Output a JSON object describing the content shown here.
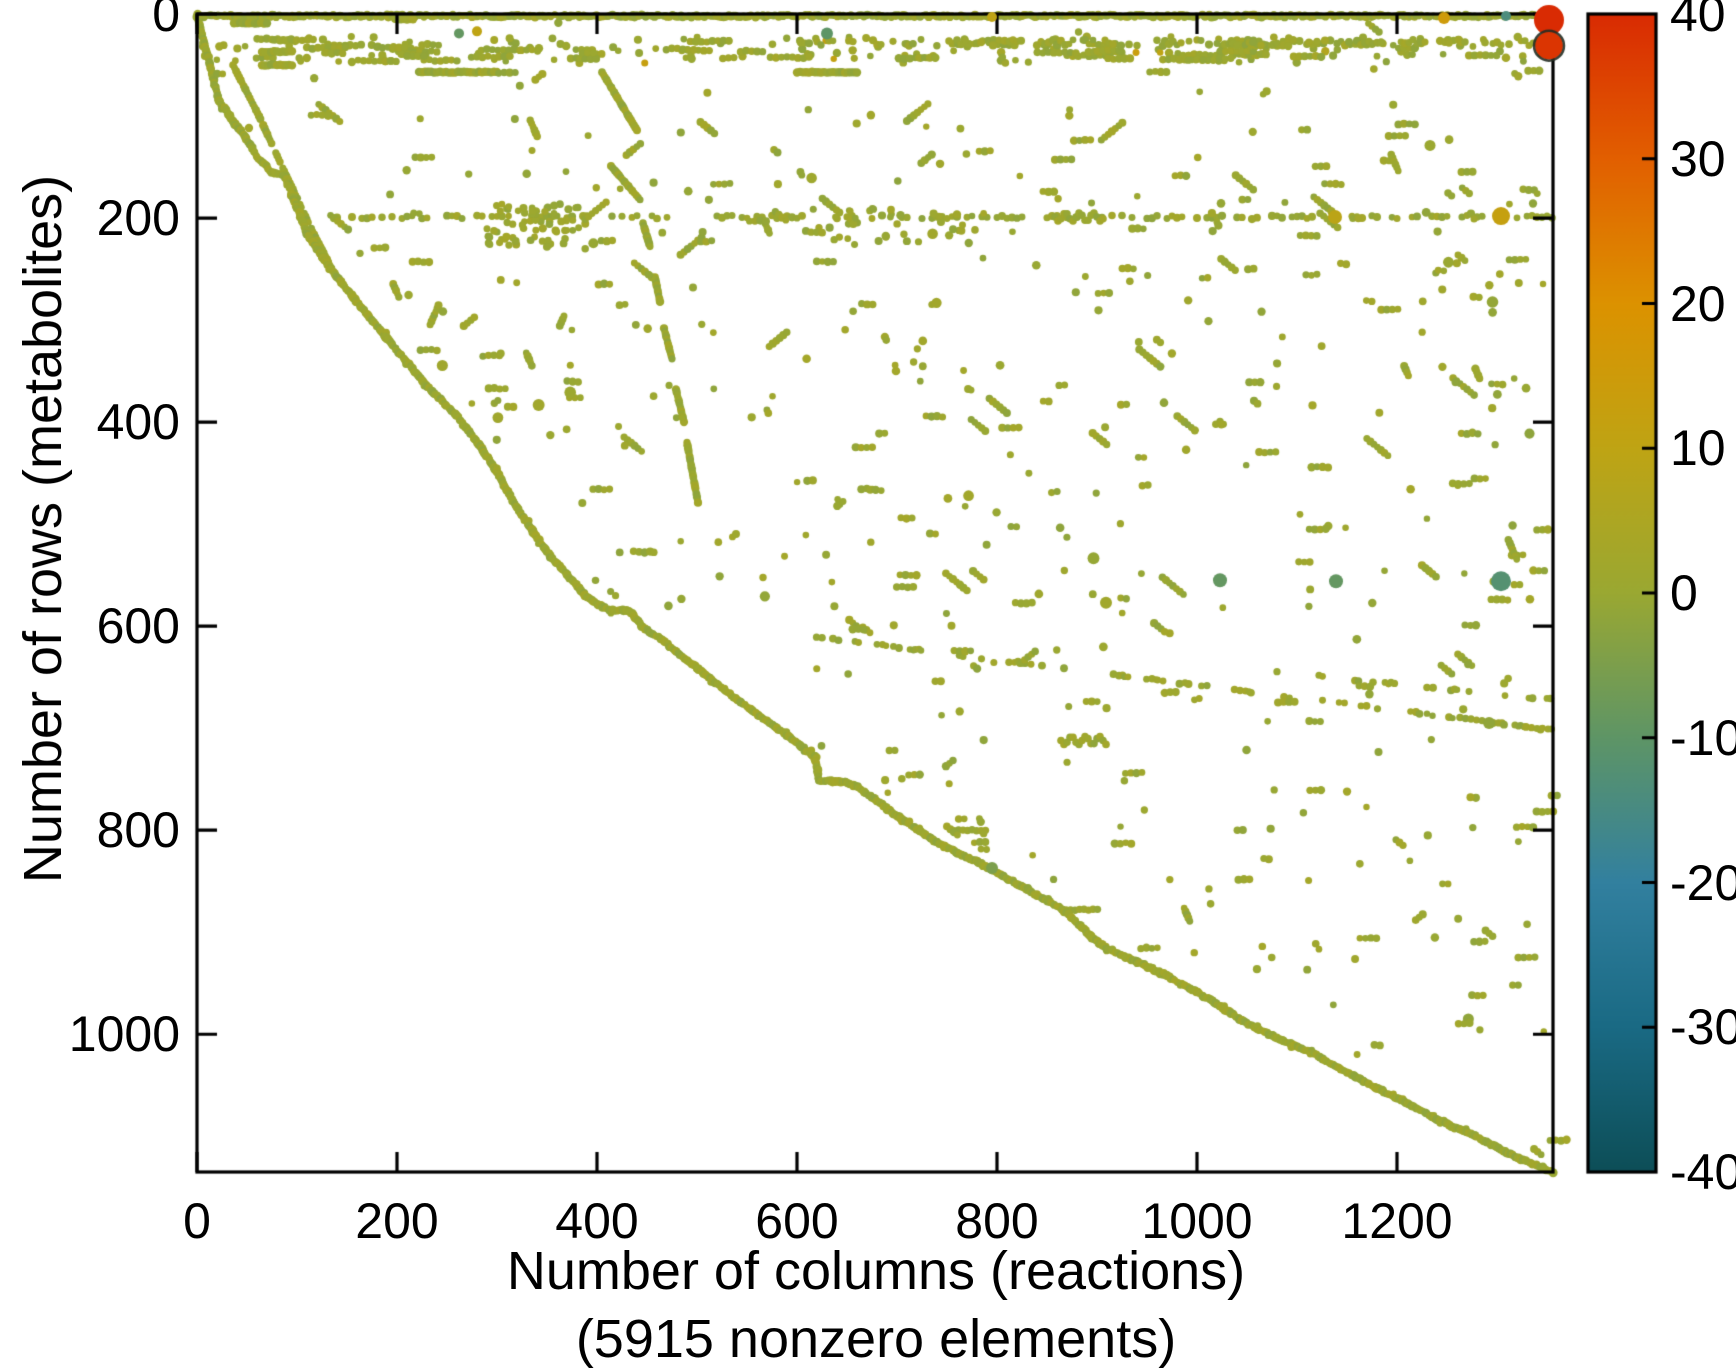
{
  "chart_data": {
    "type": "scatter",
    "subtype": "matrix-sparsity-spy",
    "xlabel": "Number of columns (reactions)",
    "xlabel_line2": "(5915 nonzero elements)",
    "ylabel": "Number of rows (metabolites)",
    "nonzero_elements": 5915,
    "x_ticks": [
      0,
      200,
      400,
      600,
      800,
      1000,
      1200
    ],
    "y_ticks": [
      0,
      200,
      400,
      600,
      800,
      1000
    ],
    "xlim": [
      0,
      1356
    ],
    "ylim": [
      0,
      1135
    ],
    "y_axis_reversed": true,
    "grid": false,
    "marker_color_default": "#97a530",
    "marker_radius_px": 3.8,
    "colorbar": {
      "min": -40,
      "max": 40,
      "ticks": [
        40,
        30,
        20,
        10,
        0,
        -10,
        -20,
        -30,
        -40
      ],
      "stops": [
        {
          "v": 40,
          "c": "#d92b03"
        },
        {
          "v": 30,
          "c": "#e25f00"
        },
        {
          "v": 20,
          "c": "#dc9200"
        },
        {
          "v": 10,
          "c": "#bfa414"
        },
        {
          "v": 0,
          "c": "#9aa832"
        },
        {
          "v": -10,
          "c": "#5e9566"
        },
        {
          "v": -20,
          "c": "#32809f"
        },
        {
          "v": -30,
          "c": "#1a6a84"
        },
        {
          "v": -40,
          "c": "#0d4e57"
        }
      ]
    },
    "frontier_points": [
      [
        0,
        0
      ],
      [
        10,
        40
      ],
      [
        22,
        85
      ],
      [
        38,
        108
      ],
      [
        49,
        121
      ],
      [
        60,
        140
      ],
      [
        75,
        155
      ],
      [
        88,
        158
      ],
      [
        95,
        178
      ],
      [
        110,
        215
      ],
      [
        125,
        238
      ],
      [
        140,
        258
      ],
      [
        155,
        276
      ],
      [
        170,
        294
      ],
      [
        190,
        318
      ],
      [
        215,
        347
      ],
      [
        235,
        370
      ],
      [
        258,
        392
      ],
      [
        282,
        422
      ],
      [
        302,
        452
      ],
      [
        316,
        478
      ],
      [
        335,
        506
      ],
      [
        350,
        527
      ],
      [
        370,
        549
      ],
      [
        388,
        570
      ],
      [
        400,
        578
      ],
      [
        413,
        585
      ],
      [
        432,
        585
      ],
      [
        448,
        603
      ],
      [
        463,
        612
      ],
      [
        500,
        641
      ],
      [
        540,
        672
      ],
      [
        580,
        700
      ],
      [
        618,
        728
      ],
      [
        622,
        751
      ],
      [
        648,
        753
      ],
      [
        660,
        757
      ],
      [
        700,
        786
      ],
      [
        740,
        812
      ],
      [
        782,
        832
      ],
      [
        830,
        858
      ],
      [
        866,
        878
      ],
      [
        895,
        905
      ],
      [
        910,
        916
      ],
      [
        940,
        929
      ],
      [
        970,
        943
      ],
      [
        1015,
        967
      ],
      [
        1045,
        987
      ],
      [
        1072,
        1000
      ],
      [
        1100,
        1012
      ],
      [
        1117,
        1019
      ],
      [
        1142,
        1033
      ],
      [
        1166,
        1046
      ],
      [
        1200,
        1063
      ],
      [
        1236,
        1081
      ],
      [
        1270,
        1096
      ],
      [
        1300,
        1111
      ],
      [
        1322,
        1122
      ],
      [
        1356,
        1135
      ]
    ],
    "structures": {
      "top_line": {
        "row": 2,
        "col_start": 0,
        "col_end": 1356,
        "step": 2.2,
        "p": 0.93
      },
      "second_band": {
        "row_min": 22,
        "row_max": 48,
        "n_dots": 150,
        "n_runs": 60,
        "run_len_min": 3,
        "run_len_max": 9
      },
      "band_row28_right": {
        "row": 28,
        "col_start": 600,
        "col_end": 1356,
        "step": 4,
        "p": 0.55
      },
      "solid_bars": [
        [
          37,
          72,
          9
        ],
        [
          198,
          216,
          5
        ],
        [
          65,
          97,
          37
        ],
        [
          65,
          95,
          50
        ],
        [
          222,
          300,
          57
        ],
        [
          600,
          660,
          57
        ]
      ],
      "row200_line": {
        "row": 199,
        "col_start": 140,
        "col_end": 1356,
        "step": 5,
        "p": 0.52
      },
      "row200_squiggle": {
        "col_start": 858,
        "col_end": 908,
        "row": 199,
        "amp": 4,
        "wavelength": 14
      },
      "row200_clusters": [
        {
          "c0": 290,
          "c1": 390,
          "r0": 186,
          "r1": 232,
          "n": 70
        },
        {
          "c0": 600,
          "c1": 790,
          "r0": 190,
          "r1": 226,
          "n": 40
        }
      ],
      "start_parallel": [
        [
          36,
          50
        ],
        [
          62,
          100
        ],
        [
          90,
          160
        ],
        [
          120,
          222
        ],
        [
          138,
          255
        ]
      ],
      "steep_diag_segments": [
        [
          405,
          57,
          440,
          114
        ],
        [
          414,
          149,
          443,
          182
        ],
        [
          446,
          205,
          453,
          228
        ],
        [
          458,
          258,
          463,
          282
        ],
        [
          467,
          308,
          475,
          338
        ],
        [
          479,
          368,
          487,
          400
        ],
        [
          490,
          420,
          501,
          479
        ]
      ],
      "shallow_diag": {
        "c0": 614,
        "r0": 610,
        "c1": 1356,
        "r1": 702,
        "step": 5.5,
        "p": 0.5
      },
      "shallow_diag2": {
        "c0": 1080,
        "r0": 645,
        "c1": 1356,
        "r1": 672,
        "step": 6,
        "p": 0.35
      },
      "mid_squiggle": {
        "col_start": 864,
        "col_end": 910,
        "row": 712,
        "amp": 4,
        "wavelength": 14
      },
      "ledges": [
        [
          869,
          902,
          878
        ],
        [
          757,
          790,
          800
        ]
      ],
      "random_scatter": {
        "attempts": 1600,
        "frontier_margin": 12,
        "bands": [
          {
            "rmax": 55,
            "p": 0.1
          },
          {
            "rmax": 150,
            "p": 0.3
          },
          {
            "rmax": 430,
            "p": 0.62
          },
          {
            "rmax": 700,
            "p": 0.46
          },
          {
            "rmax": 1135,
            "p": 0.4
          }
        ],
        "boosts": [
          {
            "c0": 1100,
            "c1": 1356,
            "r0": 0,
            "r1": 1135,
            "f": 1.3
          },
          {
            "c0": 600,
            "c1": 1050,
            "r0": 740,
            "r1": 880,
            "f": 1.5
          }
        ],
        "p_single": 0.6,
        "p_hdash": 0.22,
        "p_diagrun": 0.18
      }
    },
    "notable_points": [
      {
        "col": 1352,
        "row": 6,
        "value": 40,
        "radius_px": 15,
        "note": "large red marker"
      },
      {
        "col": 1352,
        "row": 31,
        "value": 38,
        "radius_px": 14,
        "ring": true,
        "note": "large red marker with dark ring"
      },
      {
        "col": 1304,
        "row": 198,
        "value": 12,
        "radius_px": 9
      },
      {
        "col": 1138,
        "row": 199,
        "value": 9,
        "radius_px": 7
      },
      {
        "col": 1304,
        "row": 556,
        "value": -12,
        "radius_px": 10
      },
      {
        "col": 1139,
        "row": 556,
        "value": -9,
        "radius_px": 7
      },
      {
        "col": 1023,
        "row": 555,
        "value": -9,
        "radius_px": 7
      },
      {
        "col": 909,
        "row": 577,
        "value": 2,
        "radius_px": 6
      },
      {
        "col": 795,
        "row": 837,
        "value": -5,
        "radius_px": 6
      },
      {
        "col": 262,
        "row": 19,
        "value": -9,
        "radius_px": 5
      },
      {
        "col": 630,
        "row": 19,
        "value": -10,
        "radius_px": 6
      },
      {
        "col": 1309,
        "row": 2,
        "value": -14,
        "radius_px": 5
      },
      {
        "col": 280,
        "row": 17,
        "value": 10,
        "radius_px": 5
      },
      {
        "col": 1247,
        "row": 4,
        "value": 15,
        "radius_px": 6
      },
      {
        "col": 795,
        "row": 3,
        "value": 10,
        "radius_px": 5
      }
    ]
  }
}
